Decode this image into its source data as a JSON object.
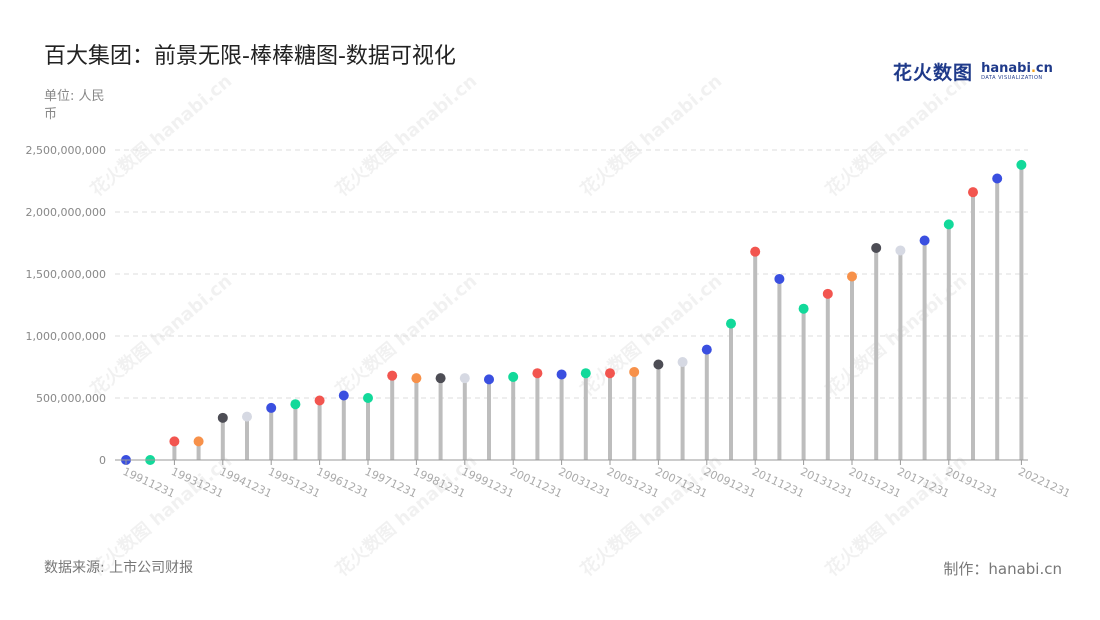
{
  "title": "百大集团：前景无限-棒棒糖图-数据可视化",
  "unit_label": "单位: 人民币",
  "logo": {
    "cn": "花火数图",
    "en_prefix": "hanabi",
    "en_dot": ".",
    "en_suffix": "cn",
    "sub": "DATA VISUALIZATION"
  },
  "source": "数据来源: 上市公司财报",
  "credit": "制作：hanabi.cn",
  "watermark_text": "花火数图 hanabi.cn",
  "colors": {
    "stem": "#bdbdbd",
    "grid": "#dddddd",
    "palette": [
      "#3a4fe0",
      "#12d99a",
      "#f2554f",
      "#f7914a",
      "#4d4d55",
      "#d6d9e3"
    ]
  },
  "chart_data": {
    "type": "lollipop",
    "ylim": [
      0,
      2500000000
    ],
    "yticks": [
      0,
      500000000,
      1000000000,
      1500000000,
      2000000000,
      2500000000
    ],
    "ytick_labels": [
      "0",
      "500,000,000",
      "1,000,000,000",
      "1,500,000,000",
      "2,000,000,000",
      "2,500,000,000"
    ],
    "grid": true,
    "xtick_labels": [
      "19911231",
      "19931231",
      "19941231",
      "19951231",
      "19961231",
      "19971231",
      "19981231",
      "19991231",
      "20011231",
      "20031231",
      "20051231",
      "20071231",
      "20091231",
      "20111231",
      "20131231",
      "20151231",
      "20171231",
      "20191231",
      "20221231"
    ],
    "points": [
      {
        "value": 0,
        "color": "#3a4fe0"
      },
      {
        "value": 0,
        "color": "#12d99a"
      },
      {
        "value": 150000000,
        "color": "#f2554f"
      },
      {
        "value": 150000000,
        "color": "#f7914a"
      },
      {
        "value": 340000000,
        "color": "#4d4d55"
      },
      {
        "value": 350000000,
        "color": "#d6d9e3"
      },
      {
        "value": 420000000,
        "color": "#3a4fe0"
      },
      {
        "value": 450000000,
        "color": "#12d99a"
      },
      {
        "value": 480000000,
        "color": "#f2554f"
      },
      {
        "value": 520000000,
        "color": "#3a4fe0"
      },
      {
        "value": 500000000,
        "color": "#12d99a"
      },
      {
        "value": 680000000,
        "color": "#f2554f"
      },
      {
        "value": 660000000,
        "color": "#f7914a"
      },
      {
        "value": 660000000,
        "color": "#4d4d55"
      },
      {
        "value": 660000000,
        "color": "#d6d9e3"
      },
      {
        "value": 650000000,
        "color": "#3a4fe0"
      },
      {
        "value": 670000000,
        "color": "#12d99a"
      },
      {
        "value": 700000000,
        "color": "#f2554f"
      },
      {
        "value": 690000000,
        "color": "#3a4fe0"
      },
      {
        "value": 700000000,
        "color": "#12d99a"
      },
      {
        "value": 700000000,
        "color": "#f2554f"
      },
      {
        "value": 710000000,
        "color": "#f7914a"
      },
      {
        "value": 770000000,
        "color": "#4d4d55"
      },
      {
        "value": 790000000,
        "color": "#d6d9e3"
      },
      {
        "value": 890000000,
        "color": "#3a4fe0"
      },
      {
        "value": 1100000000,
        "color": "#12d99a"
      },
      {
        "value": 1680000000,
        "color": "#f2554f"
      },
      {
        "value": 1460000000,
        "color": "#3a4fe0"
      },
      {
        "value": 1220000000,
        "color": "#12d99a"
      },
      {
        "value": 1340000000,
        "color": "#f2554f"
      },
      {
        "value": 1480000000,
        "color": "#f7914a"
      },
      {
        "value": 1710000000,
        "color": "#4d4d55"
      },
      {
        "value": 1690000000,
        "color": "#d6d9e3"
      },
      {
        "value": 1770000000,
        "color": "#3a4fe0"
      },
      {
        "value": 1900000000,
        "color": "#12d99a"
      },
      {
        "value": 2160000000,
        "color": "#f2554f"
      },
      {
        "value": 2270000000,
        "color": "#3a4fe0"
      },
      {
        "value": 2380000000,
        "color": "#12d99a"
      }
    ]
  }
}
